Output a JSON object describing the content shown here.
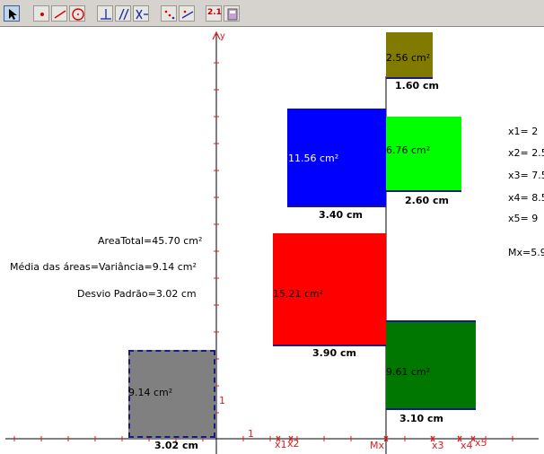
{
  "toolbar": {
    "tools": [
      {
        "name": "arrow-tool-icon",
        "active": true
      },
      {
        "name": "point-tool-icon"
      },
      {
        "name": "segment-tool-icon"
      },
      {
        "name": "circle-tool-icon"
      },
      {
        "name": "perpendicular-tool-icon"
      },
      {
        "name": "parallel-tool-icon"
      },
      {
        "name": "transform-tool-icon"
      },
      {
        "name": "locus-tool-icon"
      },
      {
        "name": "reflect-tool-icon"
      },
      {
        "name": "measure-tool-icon"
      },
      {
        "name": "calculator-tool-icon"
      }
    ],
    "measure_glyph": "2.1"
  },
  "axis": {
    "y_label": "y",
    "x_unit_label": "1",
    "y_unit_label": "1",
    "x_marks": [
      "x1",
      "x2",
      "Mx",
      "x3",
      "x4",
      "x5"
    ]
  },
  "squares": [
    {
      "id": "sq-gray",
      "area_label": "9.14  cm²",
      "side_label": "3.02  cm",
      "color": "#808080",
      "border": "dashed-navy"
    },
    {
      "id": "sq-red",
      "area_label": "15.21  cm²",
      "side_label": "3.90  cm",
      "color": "#ff0000"
    },
    {
      "id": "sq-blue",
      "area_label": "11.56  cm²",
      "side_label": "3.40  cm",
      "color": "#0000ff"
    },
    {
      "id": "sq-olive",
      "area_label": "2.56  cm²",
      "side_label": "1.60  cm",
      "color": "#807a00"
    },
    {
      "id": "sq-lime",
      "area_label": "6.76  cm²",
      "side_label": "2.60  cm",
      "color": "#00ff00"
    },
    {
      "id": "sq-darkgreen",
      "area_label": "9.61  cm²",
      "side_label": "3.10  cm",
      "color": "#007800"
    }
  ],
  "stats": {
    "area_total": "AreaTotal=45.70  cm²",
    "media_variancia": "Média das áreas=Variância=9.14  cm²",
    "desvio_padrao": "Desvio Padrão=3.02  cm"
  },
  "values_list": [
    "x1= 2",
    "x2= 2.5",
    "x3= 7.5",
    "x4= 8.5",
    "x5= 9"
  ],
  "mean_label": "Mx=5.9",
  "colors": {
    "axis": "#000000",
    "tick": "#e21b1b",
    "unit": "#e21b1b"
  }
}
